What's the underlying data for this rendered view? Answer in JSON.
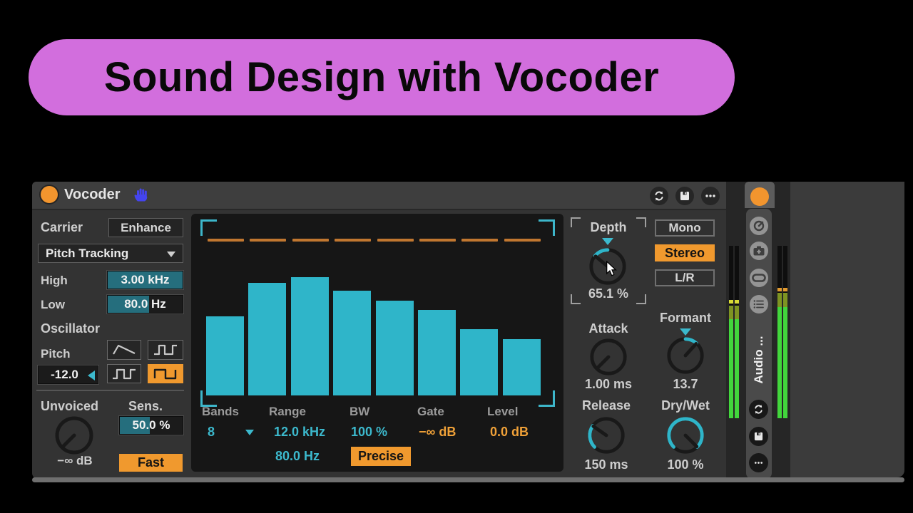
{
  "banner": {
    "title": "Sound Design with Vocoder"
  },
  "device": {
    "title": "Vocoder",
    "carrier": {
      "label": "Carrier",
      "enhance": "Enhance",
      "mode": "Pitch Tracking",
      "high_label": "High",
      "high_value": "3.00 kHz",
      "low_label": "Low",
      "low_value": "80.0 Hz"
    },
    "oscillator": {
      "label": "Oscillator",
      "pitch_label": "Pitch",
      "pitch_value": "-12.0"
    },
    "unvoiced": {
      "label": "Unvoiced",
      "sens_label": "Sens.",
      "sens_value": "50.0 %",
      "gain_value": "−∞ dB",
      "speed": "Fast"
    },
    "display": {
      "bars": [
        111,
        158,
        166,
        147,
        133,
        120,
        93,
        79
      ],
      "band_count": 8,
      "bands_label": "Bands",
      "bands_value": "8",
      "range_label": "Range",
      "range_high": "12.0 kHz",
      "range_low": "80.0 Hz",
      "bw_label": "BW",
      "bw_value": "100 %",
      "precise": "Precise",
      "gate_label": "Gate",
      "gate_value": "−∞ dB",
      "level_label": "Level",
      "level_value": "0.0 dB"
    },
    "depth": {
      "label": "Depth",
      "value": "65.1 %"
    },
    "output": {
      "mono": "Mono",
      "stereo": "Stereo",
      "lr": "L/R"
    },
    "envelope": {
      "attack_label": "Attack",
      "attack_value": "1.00 ms",
      "release_label": "Release",
      "release_value": "150 ms"
    },
    "formant": {
      "label": "Formant",
      "value": "13.7"
    },
    "drywet": {
      "label": "Dry/Wet",
      "value": "100 %"
    }
  },
  "track": {
    "name": "Audio ...",
    "meters": {
      "left": [
        [
          "#0e0e0e",
          76
        ],
        [
          "#d9dc35",
          5
        ],
        [
          "#0e0e0e",
          3
        ],
        [
          "#7e9422",
          19
        ],
        [
          "#42d63c",
          139
        ]
      ],
      "right": [
        [
          "#0e0e0e",
          59
        ],
        [
          "#e09a30",
          5
        ],
        [
          "#0e0e0e",
          2
        ],
        [
          "#7e9422",
          20
        ],
        [
          "#42d63c",
          156
        ]
      ]
    }
  },
  "colors": {
    "accent_orange": "#f0992e",
    "accent_teal": "#2fb5c9",
    "banner_pink": "#d26edd",
    "meter_green": "#42d63c"
  }
}
